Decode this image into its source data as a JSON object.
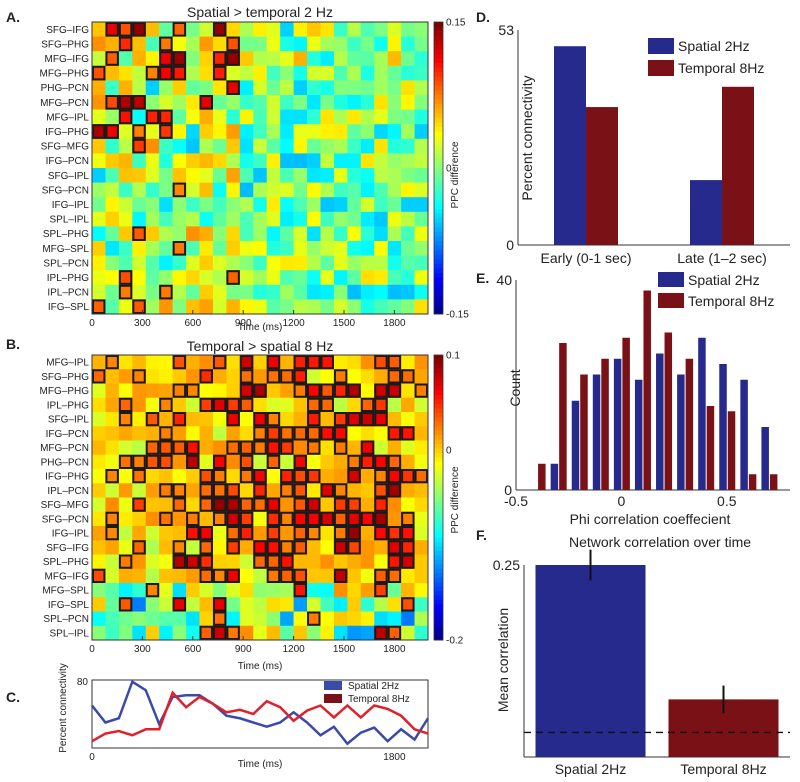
{
  "panel_letters": [
    "A.",
    "B.",
    "C.",
    "D.",
    "E.",
    "F."
  ],
  "colors": {
    "spatial": "#262a8c",
    "temporal": "#7a1116",
    "line_spatial": "#3a4aa8",
    "line_temporal": "#e0202a",
    "sig_border": "#1a1a1a"
  },
  "chart_data": [
    {
      "id": "A",
      "type": "heatmap",
      "title": "Spatial > temporal 2 Hz",
      "xlabel": "Time (ms)",
      "colorbar_label": "PPC difference",
      "x_ticks": [
        "0",
        "300",
        "600",
        "900",
        "1200",
        "1500",
        "1800"
      ],
      "colorbar_ticks": [
        "0.15",
        "0",
        "-0.15"
      ],
      "clim": [
        -0.15,
        0.15
      ],
      "rows": [
        "SFG–IFG",
        "SFG–PHG",
        "MFG–IFG",
        "MFG–PHG",
        "PHG–PCN",
        "MFG–PCN",
        "MFG–IPL",
        "IFG–PHG",
        "SFG–MFG",
        "IFG–PCN",
        "SFG–IPL",
        "SFG–PCN",
        "IFG–IPL",
        "SPL–IPL",
        "SPL–PHG",
        "MFG–SPL",
        "SPL–PCN",
        "IPL–PHG",
        "IPL–PCN",
        "IFG–SPL"
      ],
      "n_time_bins": 25,
      "time_step_ms": 80
    },
    {
      "id": "B",
      "type": "heatmap",
      "title": "Temporal > spatial 8 Hz",
      "xlabel": "Time (ms)",
      "colorbar_label": "PPC difference",
      "x_ticks": [
        "0",
        "300",
        "600",
        "900",
        "1200",
        "1500",
        "1800"
      ],
      "colorbar_ticks": [
        "0.1",
        "0",
        "-0.2"
      ],
      "clim": [
        -0.2,
        0.1
      ],
      "rows": [
        "MFG–IPL",
        "SFG–PHG",
        "MFG–PHG",
        "IPL–PHG",
        "SFG–IPL",
        "IFG–PCN",
        "MFG–PCN",
        "PHG–PCN",
        "IFG–PHG",
        "IPL–PCN",
        "SFG–MFG",
        "SFG–PCN",
        "IFG–IPL",
        "SFG–IFG",
        "SPL–PHG",
        "MFG–IFG",
        "MFG–SPL",
        "IFG–SPL",
        "SPL–PCN",
        "SPL–IPL"
      ],
      "n_time_bins": 25,
      "time_step_ms": 80
    },
    {
      "id": "C",
      "type": "line",
      "ylabel": "Percent connectivity",
      "xlabel": "Time (ms)",
      "x_ticks": [
        "0",
        "1800"
      ],
      "y_tick_top": "80",
      "ylim": [
        0,
        80
      ],
      "xlim": [
        0,
        2000
      ],
      "x": [
        0,
        80,
        160,
        240,
        320,
        400,
        480,
        560,
        640,
        720,
        800,
        880,
        960,
        1040,
        1120,
        1200,
        1280,
        1360,
        1440,
        1520,
        1600,
        1680,
        1760,
        1840,
        1920,
        2000
      ],
      "series": [
        {
          "name": "Spatial 2Hz",
          "values": [
            50,
            30,
            35,
            78,
            68,
            28,
            60,
            62,
            62,
            52,
            38,
            35,
            30,
            25,
            30,
            42,
            30,
            15,
            25,
            5,
            18,
            24,
            8,
            22,
            10,
            35
          ]
        },
        {
          "name": "Temporal 8Hz",
          "values": [
            8,
            17,
            20,
            15,
            22,
            22,
            65,
            48,
            60,
            52,
            42,
            45,
            40,
            55,
            48,
            32,
            44,
            50,
            36,
            50,
            36,
            50,
            46,
            38,
            22,
            17
          ]
        }
      ]
    },
    {
      "id": "D",
      "type": "bar",
      "ylabel": "Percent connectivity",
      "categories": [
        "Early (0-1 sec)",
        "Late (1–2 sec)"
      ],
      "series": [
        {
          "name": "Spatial 2Hz",
          "values": [
            49,
            16
          ]
        },
        {
          "name": "Temporal 8Hz",
          "values": [
            34,
            39
          ]
        }
      ],
      "ylim": [
        0,
        53
      ],
      "y_ticks": [
        "0",
        "53"
      ]
    },
    {
      "id": "E",
      "type": "bar",
      "xlabel": "Phi correlation coeffecient",
      "ylabel": "Count",
      "x_tick_labels": [
        "-0.5",
        "0",
        "0.5"
      ],
      "x_tick_values": [
        -0.5,
        0,
        0.5
      ],
      "y_ticks": [
        "0",
        "40"
      ],
      "xlim": [
        -0.5,
        0.8
      ],
      "ylim": [
        0,
        40
      ],
      "bin_centers": [
        -0.4,
        -0.3,
        -0.2,
        -0.1,
        0.0,
        0.1,
        0.2,
        0.3,
        0.4,
        0.5,
        0.6,
        0.7
      ],
      "series": [
        {
          "name": "Spatial 2Hz",
          "values": [
            0,
            5,
            17,
            22,
            25,
            21,
            26,
            22,
            29,
            24,
            21,
            12
          ]
        },
        {
          "name": "Temporal 8Hz",
          "values": [
            5,
            28,
            22,
            25,
            29,
            38,
            30,
            25,
            16,
            15,
            3,
            3
          ]
        }
      ]
    },
    {
      "id": "F",
      "type": "bar",
      "title": "Network correlation over time",
      "ylabel": "Mean correlation",
      "categories": [
        "Spatial 2Hz",
        "Temporal 8Hz"
      ],
      "values": [
        0.25,
        0.075
      ],
      "errors": [
        0.02,
        0.018
      ],
      "baseline": 0.032,
      "ylim": [
        0,
        0.25
      ],
      "y_ticks": [
        "0.25"
      ]
    }
  ]
}
